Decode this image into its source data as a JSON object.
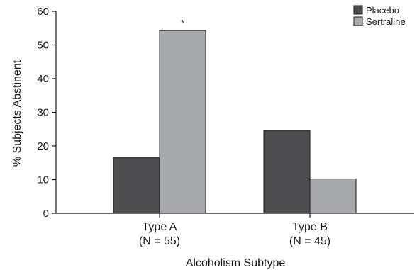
{
  "chart_data": {
    "type": "bar",
    "categories": [
      "Type A",
      "Type B"
    ],
    "category_notes": [
      "(N = 55)",
      "(N = 45)"
    ],
    "series": [
      {
        "name": "Placebo",
        "color": "#4d4d4f",
        "values": [
          16.5,
          24.5
        ]
      },
      {
        "name": "Sertraline",
        "color": "#a7a9ac",
        "values": [
          54.3,
          10.2
        ]
      }
    ],
    "annotations": [
      {
        "text": "*",
        "category": 0,
        "series": 1
      }
    ],
    "xlabel": "Alcoholism Subtype",
    "ylabel": "% Subjects Abstinent",
    "ylim": [
      0,
      60
    ],
    "yticks": [
      0,
      10,
      20,
      30,
      40,
      50,
      60
    ],
    "grid": false,
    "legend": "top-right"
  }
}
